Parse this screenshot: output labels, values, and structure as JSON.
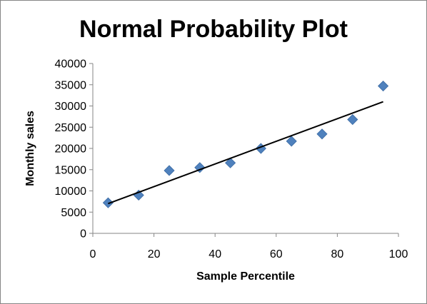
{
  "chart_data": {
    "type": "scatter",
    "title": "Normal Probability Plot",
    "xlabel": "Sample Percentile",
    "ylabel": "Monthly sales",
    "xlim": [
      0,
      100
    ],
    "ylim": [
      0,
      40000
    ],
    "xticks": [
      0,
      20,
      40,
      60,
      80,
      100
    ],
    "yticks": [
      0,
      5000,
      10000,
      15000,
      20000,
      25000,
      30000,
      35000,
      40000
    ],
    "grid": false,
    "legend": "none",
    "marker": "diamond",
    "marker_color": "#4F81BD",
    "series": [
      {
        "x": [
          5,
          15,
          25,
          35,
          45,
          55,
          65,
          75,
          85,
          95
        ],
        "y": [
          7200,
          9000,
          14800,
          15500,
          16600,
          20000,
          21700,
          23400,
          26800,
          34700
        ]
      }
    ],
    "trendline": {
      "type": "linear",
      "color": "#000000",
      "x": [
        5,
        95
      ],
      "y": [
        7000,
        31000
      ]
    }
  }
}
